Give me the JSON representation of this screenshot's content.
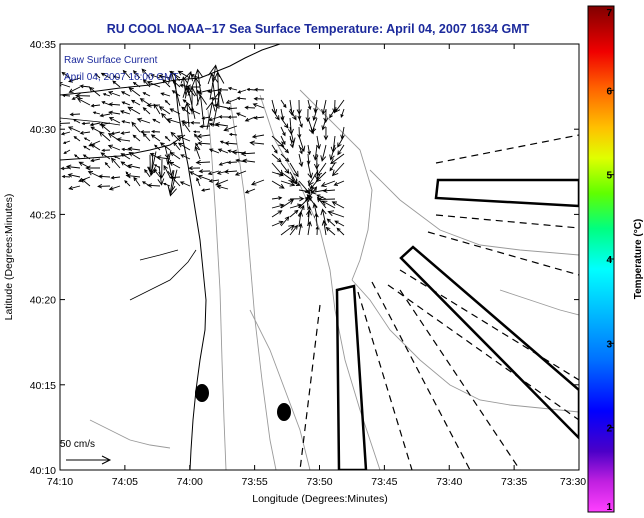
{
  "chart_data": {
    "type": "map",
    "title": "RU COOL  NOAA−17  Sea Surface Temperature:  April 04, 2007 1634 GMT",
    "xlabel": "Longitude (Degrees:Minutes)",
    "ylabel": "Latitude (Degrees:Minutes)",
    "x_ticks": [
      "74:10",
      "74:05",
      "74:00",
      "73:55",
      "73:50",
      "73:45",
      "73:40",
      "73:35",
      "73:30"
    ],
    "y_ticks": [
      "40:35",
      "40:30",
      "40:25",
      "40:20",
      "40:15",
      "40:10"
    ],
    "annotation_lines": [
      "Raw Surface Current",
      "April 04, 2007 16:00 GMT"
    ],
    "scale_label": "50 cm/s",
    "colorbar": {
      "label": "Temperature (°C)",
      "ticks": [
        "1",
        "2",
        "3",
        "4",
        "5",
        "6",
        "7"
      ],
      "range": [
        1,
        7
      ],
      "colors": [
        "#ff00ff",
        "#4b00c8",
        "#0000ff",
        "#0090ff",
        "#00ffff",
        "#00ff60",
        "#80ff00",
        "#ffff00",
        "#ffa000",
        "#ff2000",
        "#b00000",
        "#800000"
      ]
    },
    "colors": {
      "title": "#1c2a9c",
      "annotation": "#1c2a9c",
      "contour": "#9a9a9a"
    }
  }
}
